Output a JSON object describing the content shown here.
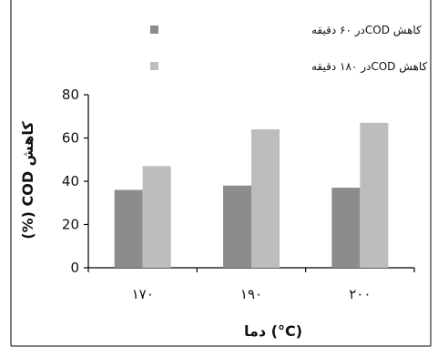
{
  "chart_data": {
    "type": "bar",
    "categories": [
      "۱۷۰",
      "۱۹۰",
      "۲۰۰"
    ],
    "series": [
      {
        "name": "کاهش CODدر ۶۰ دقیقه",
        "values": [
          36,
          38,
          37
        ],
        "color": "#8c8c8c"
      },
      {
        "name": "کاهش CODدر ۱۸۰ دقیقه",
        "values": [
          47,
          64,
          67
        ],
        "color": "#bdbdbd"
      }
    ],
    "title": "",
    "xlabel": "دما (°C)",
    "ylabel": "(%) COD کاهش",
    "ylim": [
      0,
      80
    ],
    "yticks": [
      0,
      20,
      40,
      60,
      80
    ],
    "grid": false,
    "legend_position": "top"
  }
}
